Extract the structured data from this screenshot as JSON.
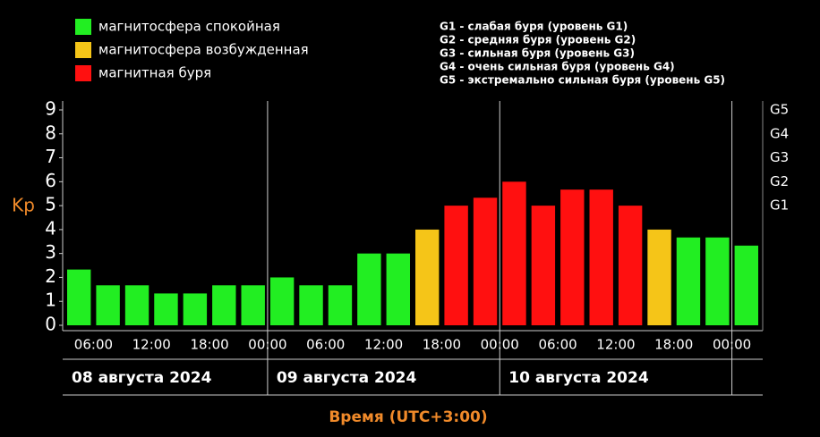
{
  "chart_data": {
    "type": "bar",
    "ylabel": "Kp",
    "xlabel": "Время (UTC+3:00)",
    "legend": [
      {
        "label": "магнитосфера спокойная",
        "color": "#22ee22"
      },
      {
        "label": "магнитосфера возбужденная",
        "color": "#f5c518"
      },
      {
        "label": "магнитная буря",
        "color": "#ff1010"
      }
    ],
    "notes": [
      "G1 - слабая буря (уровень G1)",
      "G2 - средняя буря (уровень G2)",
      "G3 - сильная буря (уровень G3)",
      "G4 - очень сильная буря (уровень G4)",
      "G5 - экстремально сильная буря (уровень G5)"
    ],
    "categories": [
      null,
      null,
      null,
      null,
      null,
      null,
      null,
      null,
      null,
      null,
      null,
      null,
      null,
      null,
      null,
      null,
      null,
      null,
      null,
      null,
      null,
      null,
      null,
      null
    ],
    "values": [
      2.33,
      1.67,
      1.67,
      1.33,
      1.33,
      1.67,
      1.67,
      2,
      1.67,
      1.67,
      3,
      3,
      4,
      5,
      5.33,
      6,
      5,
      5.67,
      5.67,
      5,
      4,
      3.67,
      3.67,
      3.33
    ],
    "bar_colors": [
      "#22ee22",
      "#22ee22",
      "#22ee22",
      "#22ee22",
      "#22ee22",
      "#22ee22",
      "#22ee22",
      "#22ee22",
      "#22ee22",
      "#22ee22",
      "#22ee22",
      "#22ee22",
      "#f5c518",
      "#ff1010",
      "#ff1010",
      "#ff1010",
      "#ff1010",
      "#ff1010",
      "#ff1010",
      "#ff1010",
      "#f5c518",
      "#22ee22",
      "#22ee22",
      "#22ee22"
    ],
    "xtick_labels": [
      "06:00",
      "12:00",
      "18:00",
      "00:00",
      "06:00",
      "12:00",
      "18:00",
      "00:00",
      "06:00",
      "12:00",
      "18:00",
      "00:00"
    ],
    "days": [
      "08 августа 2024",
      "09 августа 2024",
      "10 августа 2024"
    ],
    "ylim": [
      0,
      9
    ],
    "yticks": [
      0,
      1,
      2,
      3,
      4,
      5,
      6,
      7,
      8,
      9
    ],
    "y2lim": [
      0,
      9
    ],
    "y2ticks": [
      {
        "value": 5,
        "label": "G1"
      },
      {
        "value": 6,
        "label": "G2"
      },
      {
        "value": 7,
        "label": "G3"
      },
      {
        "value": 8,
        "label": "G4"
      },
      {
        "value": 9,
        "label": "G5"
      }
    ]
  }
}
